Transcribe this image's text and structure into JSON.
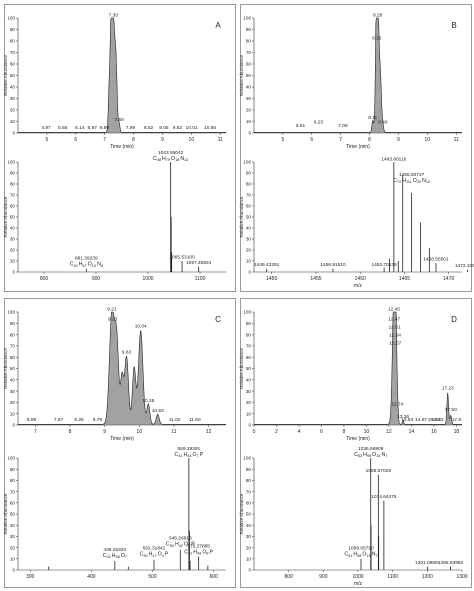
{
  "chart_data": [
    {
      "panel": "A",
      "top": {
        "type": "line",
        "xlabel": "Time (min)",
        "ylabel": "Relative Abundance",
        "xlim": [
          4,
          11.2
        ],
        "ylim": [
          0,
          100
        ],
        "xticks": [
          5,
          6,
          7,
          8,
          9,
          10,
          11
        ],
        "yticks": [
          0,
          10,
          20,
          30,
          40,
          50,
          60,
          70,
          80,
          90,
          100
        ],
        "peaks": [
          [
            7.3,
            100,
            0.08
          ],
          [
            7.22,
            72,
            0.05
          ],
          [
            7.4,
            45,
            0.05
          ],
          [
            7.5,
            8,
            0.04
          ],
          [
            7.15,
            30,
            0.04
          ]
        ],
        "labels": [
          {
            "x": 7.3,
            "y": 100,
            "text": "7.30"
          },
          {
            "x": 7.5,
            "y": 9,
            "text": "7.50"
          },
          {
            "x": 4.97,
            "y": 2,
            "text": "4.97"
          },
          {
            "x": 5.55,
            "y": 2,
            "text": "5.55"
          },
          {
            "x": 6.14,
            "y": 2,
            "text": "6.14"
          },
          {
            "x": 6.57,
            "y": 2,
            "text": "6.57"
          },
          {
            "x": 6.99,
            "y": 2,
            "text": "6.99"
          },
          {
            "x": 7.89,
            "y": 2,
            "text": "7.89"
          },
          {
            "x": 8.52,
            "y": 2,
            "text": "8.52"
          },
          {
            "x": 9.05,
            "y": 2,
            "text": "9.05"
          },
          {
            "x": 9.52,
            "y": 2,
            "text": "9.52"
          },
          {
            "x": 10.01,
            "y": 2,
            "text": "10.01"
          },
          {
            "x": 10.65,
            "y": 2,
            "text": "10.65"
          }
        ]
      },
      "bottom": {
        "type": "bar",
        "xlabel": "",
        "ylabel": "Relative Abundance",
        "xlim": [
          750,
          1150
        ],
        "ylim": [
          0,
          100
        ],
        "xticks": [
          800,
          900,
          1000,
          1100
        ],
        "yticks": [
          0,
          10,
          20,
          30,
          40,
          50,
          60,
          70,
          80,
          90,
          100
        ],
        "sticks": [
          [
            1043.55,
            100
          ],
          [
            1065.53,
            10
          ],
          [
            1097.47,
            5
          ],
          [
            881.39,
            3
          ],
          [
            1044.55,
            50
          ],
          [
            1045.55,
            18
          ]
        ],
        "labels": [
          {
            "x": 1043.55,
            "y": 100,
            "text": "1043.55042",
            "formula": "C 48 H 79 O 18 N 12"
          },
          {
            "x": 881.39,
            "y": 4,
            "text": "881.39239",
            "formula": "C 42 H 57 O 14 N 8"
          },
          {
            "x": 1065.53,
            "y": 11,
            "text": "1065.53100"
          },
          {
            "x": 1097.47,
            "y": 6,
            "text": "1097.46824"
          }
        ]
      }
    },
    {
      "panel": "B",
      "top": {
        "type": "line",
        "xlabel": "Time (min)",
        "ylabel": "Relative Abundance",
        "xlim": [
          4,
          11.2
        ],
        "ylim": [
          0,
          100
        ],
        "xticks": [
          5,
          6,
          7,
          8,
          9,
          10,
          11
        ],
        "yticks": [
          0,
          10,
          20,
          30,
          40,
          50,
          60,
          70,
          80,
          90,
          100
        ],
        "peaks": [
          [
            8.28,
            100,
            0.07
          ],
          [
            8.25,
            78,
            0.05
          ],
          [
            8.38,
            40,
            0.05
          ],
          [
            8.11,
            10,
            0.04
          ],
          [
            8.46,
            6,
            0.04
          ]
        ],
        "labels": [
          {
            "x": 8.28,
            "y": 100,
            "text": "8.28"
          },
          {
            "x": 8.25,
            "y": 80,
            "text": "8.25"
          },
          {
            "x": 5.61,
            "y": 4,
            "text": "5.61"
          },
          {
            "x": 6.23,
            "y": 7,
            "text": "6.23"
          },
          {
            "x": 7.08,
            "y": 4,
            "text": "7.08"
          },
          {
            "x": 8.11,
            "y": 11,
            "text": "8.11"
          },
          {
            "x": 8.46,
            "y": 7,
            "text": "8.46"
          }
        ]
      },
      "bottom": {
        "type": "bar",
        "xlabel": "m/z",
        "ylabel": "Relative Abundance",
        "xlim": [
          1448,
          1471.5
        ],
        "ylim": [
          0,
          100
        ],
        "xticks": [
          1450,
          1455,
          1460,
          1465,
          1470
        ],
        "yticks": [
          0,
          10,
          20,
          30,
          40,
          50,
          60,
          70,
          80,
          90,
          100
        ],
        "sticks": [
          [
            1463.8,
            100
          ],
          [
            1464.8,
            88
          ],
          [
            1465.81,
            72
          ],
          [
            1466.81,
            45
          ],
          [
            1467.81,
            22
          ],
          [
            1468.56,
            8
          ],
          [
            1462.7,
            4
          ],
          [
            1456.92,
            3
          ],
          [
            1449.43,
            3
          ],
          [
            1472.11,
            2
          ],
          [
            1463.3,
            12
          ],
          [
            1464.3,
            10
          ]
        ],
        "labels": [
          {
            "x": 1463.8,
            "y": 100,
            "text": "1463.80116"
          },
          {
            "x": 1465.81,
            "y": 80,
            "text": "1465.80727",
            "formula": "C 72 H 111 O 20 N 12"
          },
          {
            "x": 1449.43,
            "y": 4,
            "text": "1449.43291"
          },
          {
            "x": 1456.92,
            "y": 4,
            "text": "1456.91810"
          },
          {
            "x": 1462.7,
            "y": 4,
            "text": "1462.70136"
          },
          {
            "x": 1468.56,
            "y": 9,
            "text": "1468.55501"
          },
          {
            "x": 1472.11,
            "y": 3,
            "text": "1472.10611"
          }
        ],
        "formula_top": "C 72 H 111 O 20 N 12"
      }
    },
    {
      "panel": "C",
      "top": {
        "type": "line",
        "xlabel": "Time (min)",
        "ylabel": "Relative Abundance",
        "xlim": [
          6.5,
          12.5
        ],
        "ylim": [
          0,
          100
        ],
        "xticks": [
          7,
          8,
          9,
          10,
          11,
          12
        ],
        "yticks": [
          0,
          10,
          20,
          30,
          40,
          50,
          60,
          70,
          80,
          90,
          100
        ],
        "peaks": [
          [
            9.21,
            100,
            0.1
          ],
          [
            9.35,
            70,
            0.08
          ],
          [
            9.63,
            60,
            0.08
          ],
          [
            9.85,
            50,
            0.07
          ],
          [
            10.04,
            83,
            0.09
          ],
          [
            9.5,
            40,
            0.06
          ],
          [
            10.26,
            18,
            0.06
          ],
          [
            10.53,
            9,
            0.06
          ]
        ],
        "labels": [
          {
            "x": 9.21,
            "y": 100,
            "text": "9.21"
          },
          {
            "x": 9.23,
            "y": 91,
            "text": "9.23"
          },
          {
            "x": 10.04,
            "y": 85,
            "text": "10.04"
          },
          {
            "x": 9.63,
            "y": 62,
            "text": "9.63"
          },
          {
            "x": 10.26,
            "y": 19,
            "text": "10.26"
          },
          {
            "x": 10.53,
            "y": 10,
            "text": "10.53"
          },
          {
            "x": 6.89,
            "y": 2,
            "text": "6.89"
          },
          {
            "x": 7.67,
            "y": 2,
            "text": "7.67"
          },
          {
            "x": 8.26,
            "y": 2,
            "text": "8.26"
          },
          {
            "x": 8.79,
            "y": 2,
            "text": "8.79"
          },
          {
            "x": 11.02,
            "y": 2,
            "text": "11.02"
          },
          {
            "x": 11.6,
            "y": 2,
            "text": "11.60"
          }
        ]
      },
      "bottom": {
        "type": "bar",
        "xlabel": "",
        "ylabel": "Relative Abundance",
        "xlim": [
          280,
          620
        ],
        "ylim": [
          0,
          100
        ],
        "xticks": [
          300,
          400,
          500,
          600
        ],
        "yticks": [
          0,
          10,
          20,
          30,
          40,
          50,
          60,
          70,
          80,
          90,
          100
        ],
        "sticks": [
          [
            559.28,
            100
          ],
          [
            575.28,
            12
          ],
          [
            545.27,
            18
          ],
          [
            502.32,
            9
          ],
          [
            438.26,
            8
          ],
          [
            560.28,
            35
          ],
          [
            561.28,
            8
          ],
          [
            590.3,
            4
          ],
          [
            330.2,
            3
          ],
          [
            460.3,
            3
          ]
        ],
        "labels": [
          {
            "x": 559.28,
            "y": 100,
            "text": "559.28391",
            "formula": "C 31 H 44 O 7 P"
          },
          {
            "x": 545.27,
            "y": 20,
            "text": "545.26819",
            "formula": "C 30 H 42 O 7 P"
          },
          {
            "x": 502.32,
            "y": 11,
            "text": "502.31841",
            "formula": "C 30 H 47 O 4 P"
          },
          {
            "x": 438.26,
            "y": 10,
            "text": "438.26332",
            "formula": "C 24 H 38 O 7"
          },
          {
            "x": 575.28,
            "y": 13,
            "text": "575.27885",
            "formula": "C 31 H 44 O 8 P"
          }
        ]
      }
    },
    {
      "panel": "D",
      "top": {
        "type": "line",
        "xlabel": "Time (min)",
        "ylabel": "Relative Abundance",
        "xlim": [
          0,
          18.5
        ],
        "ylim": [
          0,
          100
        ],
        "xticks": [
          0,
          2,
          4,
          6,
          8,
          10,
          12,
          14,
          16,
          18
        ],
        "yticks": [
          0,
          10,
          20,
          30,
          40,
          50,
          60,
          70,
          80,
          90,
          100
        ],
        "peaks": [
          [
            12.45,
            100,
            0.2
          ],
          [
            12.55,
            82,
            0.15
          ],
          [
            12.74,
            15,
            0.1
          ],
          [
            17.23,
            28,
            0.1
          ],
          [
            17.5,
            8,
            0.1
          ],
          [
            13.26,
            4,
            0.08
          ]
        ],
        "labels": [
          {
            "x": 12.45,
            "y": 100,
            "text": "12.45"
          },
          {
            "x": 12.47,
            "y": 91,
            "text": "12.47"
          },
          {
            "x": 12.51,
            "y": 84,
            "text": "12.51"
          },
          {
            "x": 12.54,
            "y": 77,
            "text": "12.54"
          },
          {
            "x": 12.57,
            "y": 70,
            "text": "12.57"
          },
          {
            "x": 12.74,
            "y": 16,
            "text": "12.74"
          },
          {
            "x": 13.26,
            "y": 5,
            "text": "13.26"
          },
          {
            "x": 13.63,
            "y": 2,
            "text": "13.63"
          },
          {
            "x": 14.87,
            "y": 2,
            "text": "14.87"
          },
          {
            "x": 15.99,
            "y": 2,
            "text": "15.99"
          },
          {
            "x": 16.33,
            "y": 2,
            "text": "16.33"
          },
          {
            "x": 17.23,
            "y": 30,
            "text": "17.23"
          },
          {
            "x": 17.5,
            "y": 11,
            "text": "17.50"
          },
          {
            "x": 18.0,
            "y": 2,
            "text": "17.8"
          }
        ]
      },
      "bottom": {
        "type": "bar",
        "xlabel": "m/z",
        "ylabel": "Relative Abundance",
        "xlim": [
          700,
          1300
        ],
        "ylim": [
          0,
          100
        ],
        "xticks": [
          800,
          900,
          1000,
          1100,
          1200,
          1300
        ],
        "yticks": [
          0,
          10,
          20,
          30,
          40,
          50,
          60,
          70,
          80,
          90,
          100
        ],
        "sticks": [
          [
            1036.67,
            100
          ],
          [
            1058.67,
            85
          ],
          [
            1074.64,
            62
          ],
          [
            1008.66,
            10
          ],
          [
            1201.09,
            3
          ],
          [
            1266.94,
            3
          ],
          [
            1037.67,
            40
          ],
          [
            1059.67,
            30
          ]
        ],
        "labels": [
          {
            "x": 1036.67,
            "y": 100,
            "text": "1036.66909",
            "formula": "C 53 H 98 O 15 N 7"
          },
          {
            "x": 1058.67,
            "y": 86,
            "text": "1058.67029"
          },
          {
            "x": 1074.64,
            "y": 63,
            "text": "1074.64478"
          },
          {
            "x": 1008.66,
            "y": 11,
            "text": "1008.65790",
            "formula": "C 51 H 98 O 15 N 7"
          },
          {
            "x": 1201.09,
            "y": 4,
            "text": "1201.08691"
          },
          {
            "x": 1266.94,
            "y": 4,
            "text": "1266.93982"
          }
        ]
      }
    }
  ]
}
